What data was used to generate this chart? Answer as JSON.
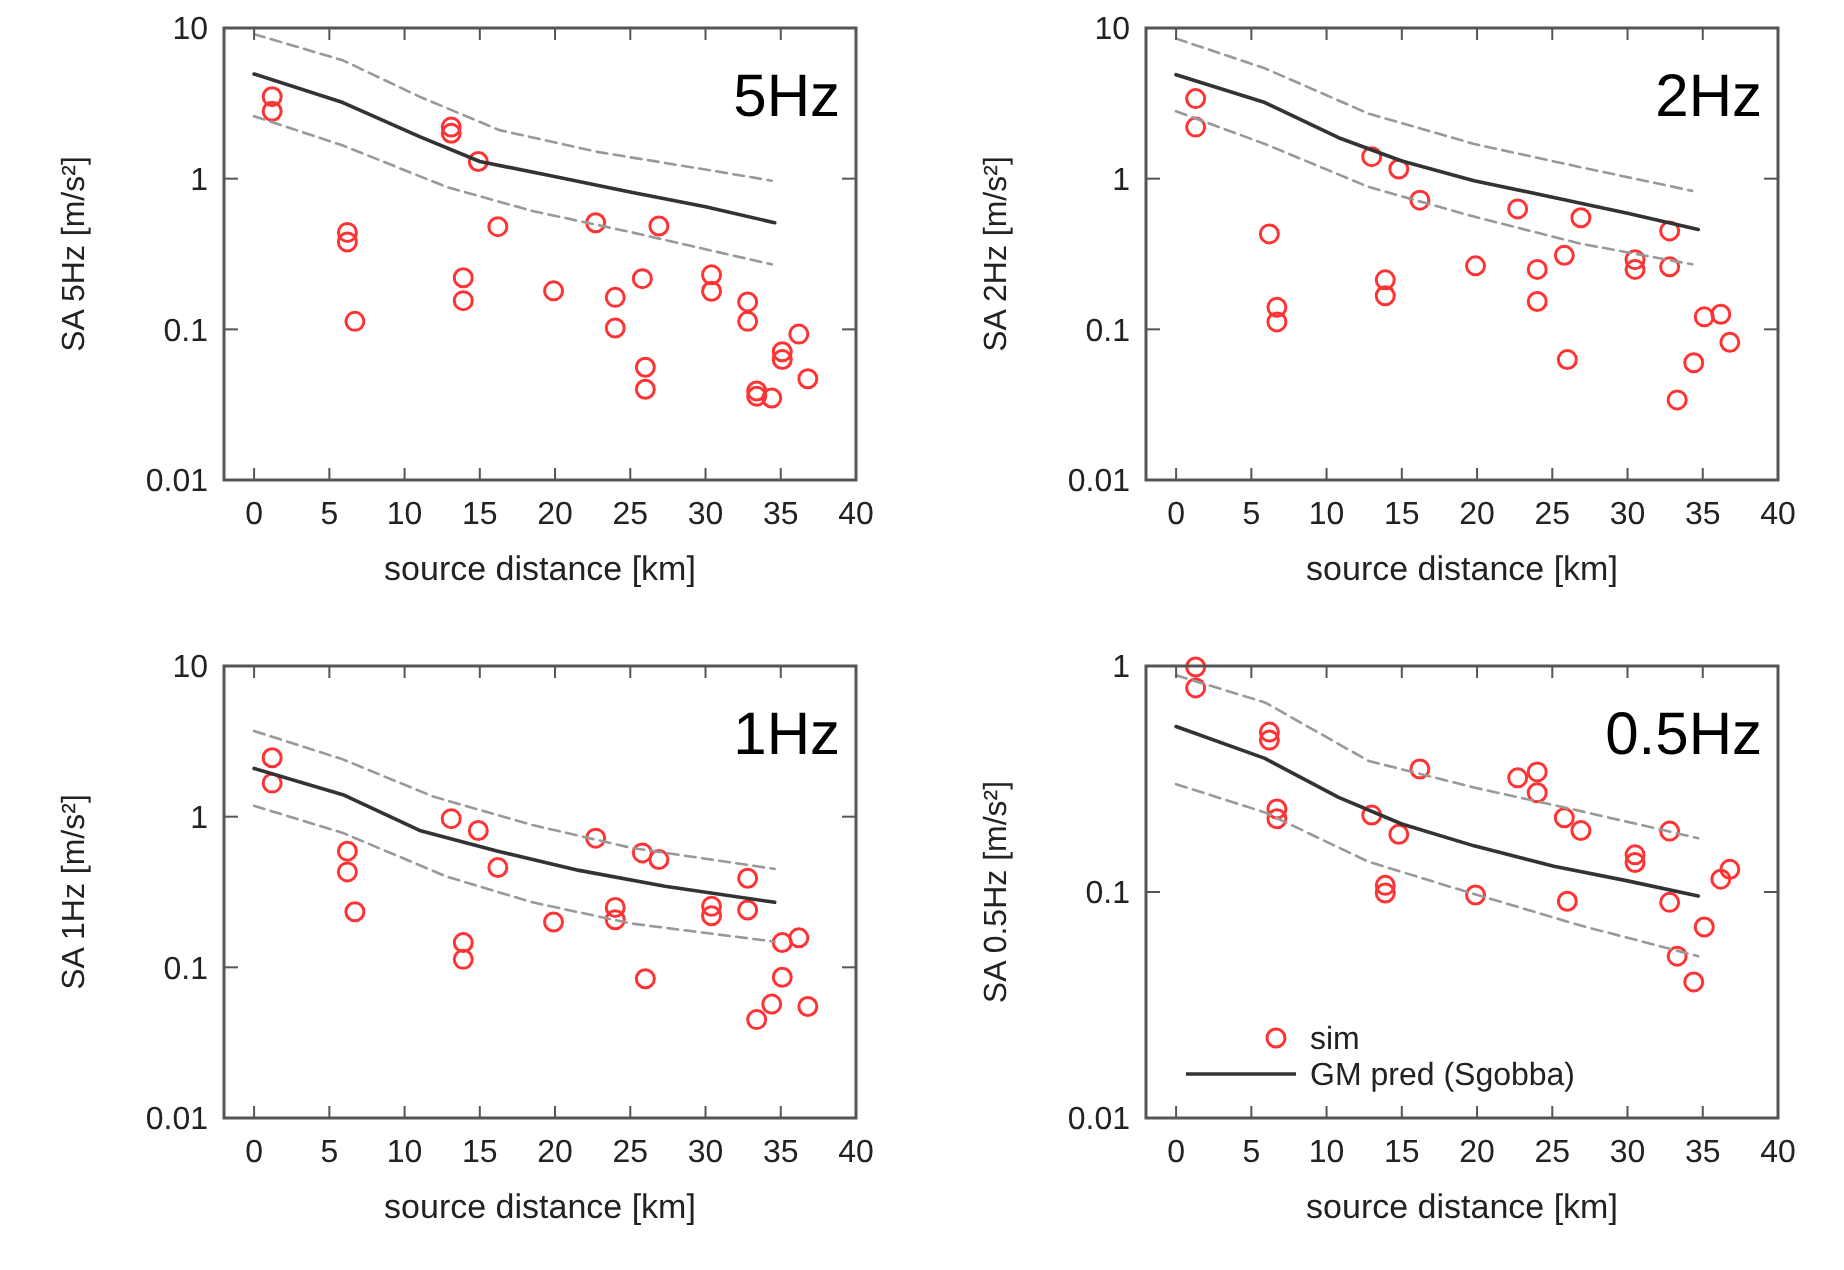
{
  "chart_data": [
    {
      "type": "scatter",
      "title": "5Hz",
      "xlabel": "source distance [km]",
      "ylabel": "SA 5Hz [m/s²]",
      "log": "y",
      "xlim": [
        -2,
        40
      ],
      "xticks": [
        0,
        5,
        10,
        15,
        20,
        25,
        30,
        35,
        40
      ],
      "ylim": [
        0.01,
        10
      ],
      "yticks": [
        0.01,
        0.1,
        1,
        10
      ],
      "legend": false,
      "series": [
        {
          "marker": "circle",
          "color": "#ff3333",
          "x": [
            1.2,
            1.2,
            6.2,
            6.2,
            6.7,
            13.1,
            13.1,
            14.9,
            13.9,
            13.9,
            16.2,
            19.9,
            22.7,
            24.0,
            24.0,
            25.8,
            26.0,
            26.0,
            26.9,
            30.4,
            30.4,
            32.8,
            32.8,
            33.4,
            33.4,
            34.4,
            35.1,
            35.1,
            36.2,
            36.8
          ],
          "values": [
            3.5,
            2.8,
            0.44,
            0.38,
            0.113,
            2.2,
            2.0,
            1.3,
            0.22,
            0.155,
            0.48,
            0.18,
            0.51,
            0.163,
            0.102,
            0.217,
            0.056,
            0.04,
            0.485,
            0.23,
            0.179,
            0.152,
            0.113,
            0.039,
            0.036,
            0.035,
            0.071,
            0.063,
            0.093,
            0.047
          ]
        },
        {
          "type": "line",
          "line_style": "solid",
          "color": "#333333",
          "x": [
            0,
            5.9,
            11,
            15,
            19.8,
            24.9,
            30,
            34.6
          ],
          "values": [
            4.95,
            3.2,
            1.9,
            1.3,
            1.04,
            0.82,
            0.65,
            0.51
          ]
        },
        {
          "type": "line",
          "line_style": "dashed",
          "color": "#999999",
          "x": [
            0,
            5.9,
            11,
            16.3,
            22.9,
            30,
            34.4
          ],
          "values": [
            9.1,
            6.1,
            3.5,
            2.1,
            1.5,
            1.15,
            0.97
          ]
        },
        {
          "type": "line",
          "line_style": "dashed",
          "color": "#999999",
          "x": [
            0,
            5.9,
            12.8,
            18.5,
            25.1,
            30,
            34.4
          ],
          "values": [
            2.6,
            1.66,
            0.88,
            0.61,
            0.44,
            0.34,
            0.27
          ]
        }
      ]
    },
    {
      "type": "scatter",
      "title": "2Hz",
      "xlabel": "source distance [km]",
      "ylabel": "SA 2Hz [m/s²]",
      "log": "y",
      "xlim": [
        -2,
        40
      ],
      "xticks": [
        0,
        5,
        10,
        15,
        20,
        25,
        30,
        35,
        40
      ],
      "ylim": [
        0.01,
        10
      ],
      "yticks": [
        0.01,
        0.1,
        1,
        10
      ],
      "legend": false,
      "series": [
        {
          "marker": "circle",
          "color": "#ff3333",
          "x": [
            1.3,
            1.3,
            6.2,
            6.7,
            6.7,
            13.0,
            14.8,
            16.2,
            13.9,
            13.9,
            19.9,
            22.7,
            24.0,
            24.0,
            25.8,
            26.0,
            26.9,
            30.5,
            30.5,
            32.8,
            32.8,
            33.3,
            34.4,
            35.1,
            36.2,
            36.8
          ],
          "values": [
            3.4,
            2.2,
            0.43,
            0.14,
            0.112,
            1.4,
            1.16,
            0.72,
            0.213,
            0.167,
            0.264,
            0.63,
            0.25,
            0.153,
            0.31,
            0.063,
            0.55,
            0.29,
            0.25,
            0.45,
            0.26,
            0.034,
            0.06,
            0.121,
            0.126,
            0.082
          ]
        },
        {
          "type": "line",
          "line_style": "solid",
          "color": "#333333",
          "x": [
            0,
            5.9,
            10.8,
            15,
            19.8,
            25.1,
            30,
            34.7
          ],
          "values": [
            4.9,
            3.2,
            1.87,
            1.31,
            0.97,
            0.75,
            0.59,
            0.46
          ]
        },
        {
          "type": "line",
          "line_style": "dashed",
          "color": "#999999",
          "x": [
            0,
            5.9,
            12.8,
            19.8,
            26.9,
            34.3
          ],
          "values": [
            8.5,
            5.4,
            2.7,
            1.7,
            1.19,
            0.83
          ]
        },
        {
          "type": "line",
          "line_style": "dashed",
          "color": "#999999",
          "x": [
            0,
            5.9,
            12.8,
            19.8,
            26.9,
            34.3
          ],
          "values": [
            2.8,
            1.7,
            0.88,
            0.56,
            0.37,
            0.27
          ]
        }
      ]
    },
    {
      "type": "scatter",
      "title": "1Hz",
      "xlabel": "source distance [km]",
      "ylabel": "SA 1Hz [m/s²]",
      "log": "y",
      "xlim": [
        -2,
        40
      ],
      "xticks": [
        0,
        5,
        10,
        15,
        20,
        25,
        30,
        35,
        40
      ],
      "ylim": [
        0.01,
        10
      ],
      "yticks": [
        0.01,
        0.1,
        1,
        10
      ],
      "legend": false,
      "series": [
        {
          "marker": "circle",
          "color": "#ff3333",
          "x": [
            1.2,
            1.2,
            6.2,
            6.2,
            6.7,
            13.1,
            14.9,
            16.2,
            13.9,
            13.9,
            19.9,
            22.7,
            24.0,
            24.0,
            25.8,
            26.0,
            26.9,
            30.4,
            30.4,
            32.8,
            32.8,
            33.4,
            34.4,
            35.1,
            35.1,
            36.2,
            36.8
          ],
          "values": [
            2.46,
            1.67,
            0.59,
            0.43,
            0.234,
            0.97,
            0.81,
            0.46,
            0.146,
            0.113,
            0.2,
            0.72,
            0.25,
            0.207,
            0.575,
            0.084,
            0.52,
            0.254,
            0.22,
            0.39,
            0.24,
            0.045,
            0.057,
            0.146,
            0.086,
            0.157,
            0.055
          ]
        },
        {
          "type": "line",
          "line_style": "solid",
          "color": "#333333",
          "x": [
            0,
            5.9,
            11,
            16.2,
            21.6,
            27.3,
            34.6
          ],
          "values": [
            2.09,
            1.4,
            0.81,
            0.59,
            0.44,
            0.345,
            0.27
          ]
        },
        {
          "type": "line",
          "line_style": "dashed",
          "color": "#999999",
          "x": [
            0,
            5.9,
            11.9,
            18.5,
            25.1,
            34.6
          ],
          "values": [
            3.7,
            2.4,
            1.36,
            0.88,
            0.62,
            0.45
          ]
        },
        {
          "type": "line",
          "line_style": "dashed",
          "color": "#999999",
          "x": [
            0,
            5.9,
            12.8,
            18.5,
            25.1,
            34.6
          ],
          "values": [
            1.18,
            0.78,
            0.4,
            0.27,
            0.195,
            0.148
          ]
        }
      ]
    },
    {
      "type": "scatter",
      "title": "0.5Hz",
      "xlabel": "source distance [km]",
      "ylabel": "SA 0.5Hz [m/s²]",
      "log": "y",
      "xlim": [
        -2,
        40
      ],
      "xticks": [
        0,
        5,
        10,
        15,
        20,
        25,
        30,
        35,
        40
      ],
      "ylim": [
        0.01,
        1
      ],
      "yticks": [
        0.01,
        0.1,
        1
      ],
      "legend": "bottom left",
      "series": [
        {
          "name": "sim",
          "marker": "circle",
          "color": "#ff3333",
          "x": [
            1.3,
            1.3,
            6.2,
            6.2,
            6.7,
            6.7,
            13.0,
            14.8,
            16.2,
            13.9,
            13.9,
            19.9,
            22.7,
            24.0,
            24.0,
            25.8,
            26.0,
            26.9,
            30.5,
            30.5,
            32.8,
            32.8,
            33.3,
            34.4,
            35.1,
            36.2,
            36.8
          ],
          "values": [
            0.99,
            0.8,
            0.51,
            0.47,
            0.233,
            0.211,
            0.219,
            0.18,
            0.35,
            0.107,
            0.099,
            0.097,
            0.32,
            0.34,
            0.275,
            0.213,
            0.091,
            0.187,
            0.146,
            0.135,
            0.186,
            0.09,
            0.052,
            0.04,
            0.07,
            0.114,
            0.126
          ]
        },
        {
          "name": "GM pred (Sgobba)",
          "type": "line",
          "line_style": "solid",
          "color": "#333333",
          "x": [
            0,
            5.9,
            10.8,
            15,
            19.8,
            25.1,
            30,
            34.7
          ],
          "values": [
            0.54,
            0.39,
            0.262,
            0.2,
            0.16,
            0.13,
            0.112,
            0.096
          ]
        },
        {
          "type": "line",
          "line_style": "dashed",
          "color": "#999999",
          "x": [
            0,
            5.9,
            12.8,
            19.8,
            26.9,
            34.7
          ],
          "values": [
            0.91,
            0.69,
            0.38,
            0.29,
            0.228,
            0.173
          ]
        },
        {
          "type": "line",
          "line_style": "dashed",
          "color": "#999999",
          "x": [
            0,
            5.9,
            12.8,
            19.8,
            26.9,
            34.7
          ],
          "values": [
            0.3,
            0.225,
            0.136,
            0.098,
            0.071,
            0.052
          ]
        }
      ]
    }
  ]
}
